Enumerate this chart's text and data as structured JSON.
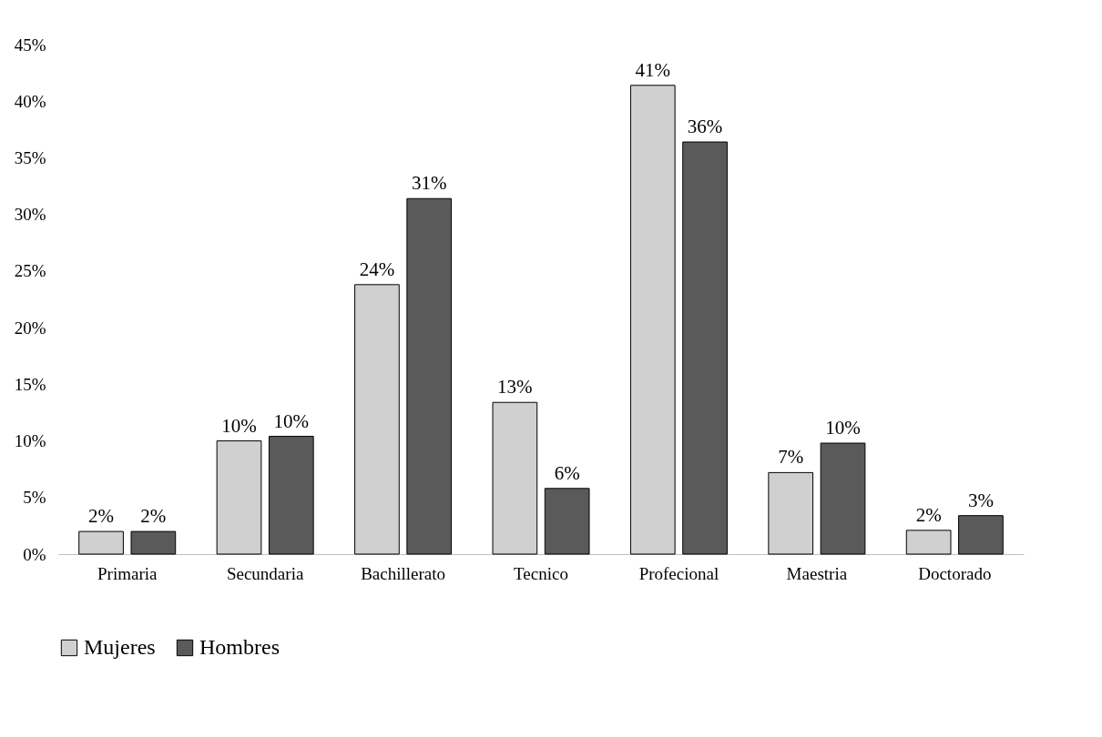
{
  "chart_data": {
    "type": "bar",
    "categories": [
      "Primaria",
      "Secundaria",
      "Bachillerato",
      "Tecnico",
      "Profecional",
      "Maestria",
      "Doctorado"
    ],
    "series": [
      {
        "name": "Mujeres",
        "color": "#d0d0d0",
        "values": [
          2.0,
          10.0,
          23.8,
          13.4,
          41.4,
          7.2,
          2.1
        ],
        "value_labels": [
          "2%",
          "10%",
          "24%",
          "13%",
          "41%",
          "7%",
          "2%"
        ]
      },
      {
        "name": "Hombres",
        "color": "#5a5a5a",
        "values": [
          2.0,
          10.4,
          31.4,
          5.8,
          36.4,
          9.8,
          3.4
        ],
        "value_labels": [
          "2%",
          "10%",
          "31%",
          "6%",
          "36%",
          "10%",
          "3%"
        ]
      }
    ],
    "ylim": [
      0,
      45
    ],
    "yticks": [
      {
        "value": 0,
        "label": "0%"
      },
      {
        "value": 5,
        "label": "5%"
      },
      {
        "value": 10,
        "label": "10%"
      },
      {
        "value": 15,
        "label": "15%"
      },
      {
        "value": 20,
        "label": "20%"
      },
      {
        "value": 25,
        "label": "25%"
      },
      {
        "value": 30,
        "label": "30%"
      },
      {
        "value": 35,
        "label": "35%"
      },
      {
        "value": 40,
        "label": "40%"
      },
      {
        "value": 45,
        "label": "45%"
      }
    ],
    "grid": false,
    "legend": "bottom"
  }
}
